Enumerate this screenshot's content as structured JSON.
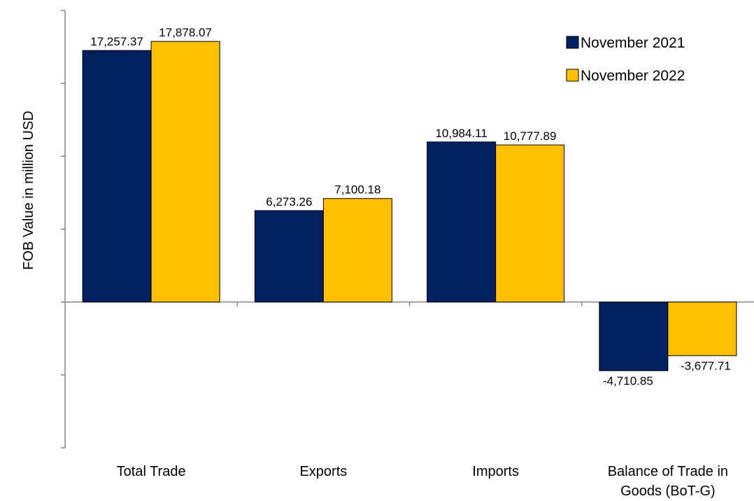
{
  "chart_data": {
    "type": "bar",
    "title": "",
    "xlabel": "",
    "ylabel": "FOB Value in million USD",
    "categories": [
      "Total Trade",
      "Exports",
      "Imports",
      "Balance of Trade in Goods (BoT-G)"
    ],
    "category_lines": [
      [
        "Total Trade"
      ],
      [
        "Exports"
      ],
      [
        "Imports"
      ],
      [
        "Balance of Trade in",
        "Goods (BoT-G)"
      ]
    ],
    "series": [
      {
        "name": "November 2021",
        "color": "#002060",
        "values": [
          17257.37,
          6273.26,
          10984.11,
          -4710.85
        ],
        "labels": [
          "17,257.37",
          "6,273.26",
          "10,984.11",
          "-4,710.85"
        ]
      },
      {
        "name": "November 2022",
        "color": "#FFC000",
        "values": [
          17878.07,
          7100.18,
          10777.89,
          -3677.71
        ],
        "labels": [
          "17,878.07",
          "7,100.18",
          "10,777.89",
          "-3,677.71"
        ]
      }
    ],
    "ylim": [
      -10000,
      20000
    ],
    "yticks": [
      -10000,
      -5000,
      0,
      5000,
      10000,
      15000,
      20000
    ],
    "ytick_labels_visible": false,
    "grid": false,
    "legend_position": "top-right"
  }
}
